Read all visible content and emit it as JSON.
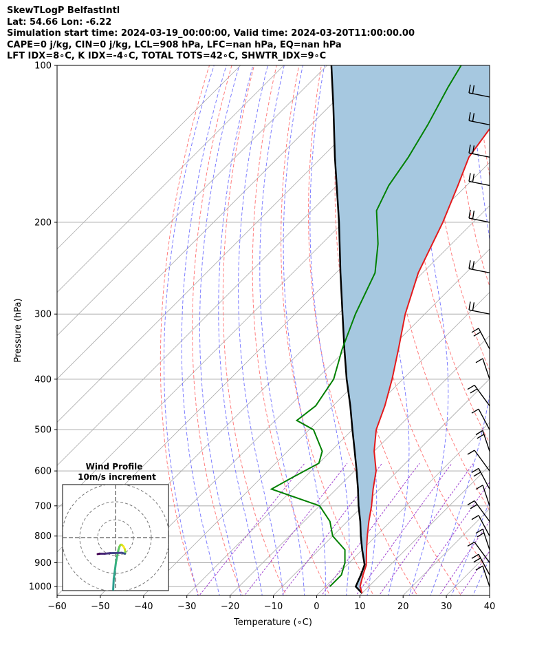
{
  "header": {
    "line1": "SkewTLogP BelfastIntl",
    "line2": "Lat: 54.66   Lon: -6.22",
    "line3": "Simulation start time: 2024-03-19_00:00:00, Valid time: 2024-03-20T11:00:00.00",
    "line4": "CAPE=0 j/kg, CIN=0 j/kg, LCL=908 hPa, LFC=nan hPa, EQ=nan hPa",
    "line5": "LFT IDX=8∘C, K IDX=-4∘C, TOTAL TOTS=42∘C, SHWTR_IDX=9∘C"
  },
  "chart_data": {
    "type": "skewt-logp",
    "station": "BelfastIntl",
    "xlabel": "Temperature (∘C)",
    "ylabel": "Pressure (hPa)",
    "xlim": [
      -60,
      40
    ],
    "ylim": [
      1040,
      100
    ],
    "x_ticks": [
      -60,
      -50,
      -40,
      -30,
      -20,
      -10,
      0,
      10,
      20,
      30,
      40
    ],
    "x_tick_labels": [
      "−60",
      "−50",
      "−40",
      "−30",
      "−20",
      "−10",
      "0",
      "10",
      "20",
      "30",
      "40"
    ],
    "y_ticks": [
      1000,
      900,
      800,
      700,
      600,
      500,
      400,
      300,
      200,
      100
    ],
    "y_tick_labels": [
      "1000",
      "900",
      "800",
      "700",
      "600",
      "500",
      "400",
      "300",
      "200",
      "100"
    ],
    "skew": 45,
    "temperature_profile": [
      [
        1030,
        10
      ],
      [
        1000,
        8
      ],
      [
        950,
        6
      ],
      [
        910,
        4.5
      ],
      [
        850,
        1
      ],
      [
        800,
        -2
      ],
      [
        750,
        -5
      ],
      [
        700,
        -8
      ],
      [
        650,
        -11.5
      ],
      [
        600,
        -15
      ],
      [
        550,
        -20
      ],
      [
        500,
        -24.5
      ],
      [
        450,
        -28
      ],
      [
        400,
        -32.5
      ],
      [
        350,
        -38
      ],
      [
        300,
        -44.5
      ],
      [
        250,
        -51
      ],
      [
        200,
        -57
      ],
      [
        170,
        -62
      ],
      [
        150,
        -66
      ],
      [
        130,
        -68
      ],
      [
        110,
        -68
      ],
      [
        100,
        -68
      ]
    ],
    "dewpoint_profile": [
      [
        1000,
        1
      ],
      [
        950,
        1
      ],
      [
        900,
        -1
      ],
      [
        850,
        -4
      ],
      [
        800,
        -10
      ],
      [
        750,
        -14
      ],
      [
        700,
        -20
      ],
      [
        650,
        -35
      ],
      [
        620,
        -33
      ],
      [
        580,
        -30
      ],
      [
        550,
        -32
      ],
      [
        500,
        -39
      ],
      [
        480,
        -45
      ],
      [
        450,
        -44
      ],
      [
        400,
        -46
      ],
      [
        350,
        -51
      ],
      [
        300,
        -56
      ],
      [
        250,
        -61
      ],
      [
        220,
        -67
      ],
      [
        190,
        -75
      ],
      [
        170,
        -78
      ],
      [
        150,
        -80
      ],
      [
        130,
        -83
      ],
      [
        110,
        -87
      ],
      [
        100,
        -89
      ]
    ],
    "parcel_profile": [
      [
        1030,
        10
      ],
      [
        1000,
        7
      ],
      [
        950,
        5.5
      ],
      [
        908,
        4
      ],
      [
        850,
        0
      ],
      [
        800,
        -3.5
      ],
      [
        750,
        -7
      ],
      [
        700,
        -11
      ],
      [
        650,
        -15
      ],
      [
        600,
        -19.5
      ],
      [
        550,
        -24.5
      ],
      [
        500,
        -30
      ],
      [
        450,
        -36
      ],
      [
        400,
        -43
      ],
      [
        350,
        -50.5
      ],
      [
        300,
        -59
      ],
      [
        250,
        -69
      ],
      [
        200,
        -81
      ],
      [
        150,
        -97
      ],
      [
        120,
        -109
      ],
      [
        100,
        -119
      ]
    ],
    "cape_cin_shading": "between temperature and parcel",
    "wind_barbs": [
      {
        "p": 1000
      },
      {
        "p": 950
      },
      {
        "p": 900
      },
      {
        "p": 850
      },
      {
        "p": 800
      },
      {
        "p": 750
      },
      {
        "p": 700
      },
      {
        "p": 650
      },
      {
        "p": 600
      },
      {
        "p": 550
      },
      {
        "p": 500
      },
      {
        "p": 450
      },
      {
        "p": 400
      },
      {
        "p": 350
      },
      {
        "p": 300
      },
      {
        "p": 250
      },
      {
        "p": 200
      },
      {
        "p": 170
      },
      {
        "p": 150
      },
      {
        "p": 130
      },
      {
        "p": 115
      }
    ],
    "hodograph": {
      "title": "Wind Profile",
      "subtitle": "10m/s increment",
      "rings": [
        10,
        20,
        30
      ],
      "trace": [
        [
          -1.3,
          -29
        ],
        [
          -1,
          -23
        ],
        [
          -0.3,
          -18
        ],
        [
          0.2,
          -14
        ],
        [
          1,
          -10
        ],
        [
          1.6,
          -7
        ],
        [
          2.2,
          -5
        ],
        [
          2.8,
          -4
        ],
        [
          3.5,
          -4
        ],
        [
          4.5,
          -5
        ],
        [
          5.2,
          -6.5
        ],
        [
          5.5,
          -8
        ],
        [
          5.3,
          -9
        ],
        [
          3.5,
          -8.5
        ],
        [
          -3,
          -8.7
        ],
        [
          -6,
          -9
        ],
        [
          -9,
          -9
        ],
        [
          -10,
          -9.2
        ]
      ]
    },
    "line_colors": {
      "temperature": "#e41a1c",
      "dewpoint": "#008000",
      "parcel": "#000000",
      "cape_fill": "#a6c8e0",
      "dry_adiabats": "#ff6666",
      "moist_adiabats": "#6666ff",
      "mixing_ratio": "#9932cc",
      "isotherms": "#aaaaaa"
    }
  }
}
